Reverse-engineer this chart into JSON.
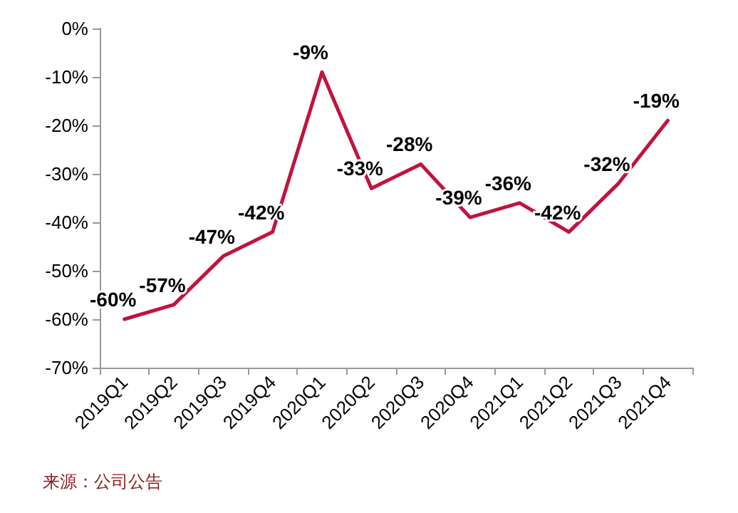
{
  "chart_data": {
    "type": "line",
    "categories": [
      "2019Q1",
      "2019Q2",
      "2019Q3",
      "2019Q4",
      "2020Q1",
      "2020Q2",
      "2020Q3",
      "2020Q4",
      "2021Q1",
      "2021Q2",
      "2021Q3",
      "2021Q4"
    ],
    "series": [
      {
        "color": "#c0143c",
        "values": [
          -60,
          -57,
          -47,
          -42,
          -9,
          -33,
          -28,
          -39,
          -36,
          -42,
          -32,
          -19
        ],
        "value_labels": [
          "-60%",
          "-57%",
          "-47%",
          "-42%",
          "-9%",
          "-33%",
          "-28%",
          "-39%",
          "-36%",
          "-42%",
          "-32%",
          "-19%"
        ]
      }
    ],
    "ylim": [
      -70,
      0
    ],
    "yticks": [
      {
        "value": 0,
        "label": "0%"
      },
      {
        "value": -10,
        "label": "-10%"
      },
      {
        "value": -20,
        "label": "-20%"
      },
      {
        "value": -30,
        "label": "-30%"
      },
      {
        "value": -40,
        "label": "-40%"
      },
      {
        "value": -50,
        "label": "-50%"
      },
      {
        "value": -60,
        "label": "-60%"
      },
      {
        "value": -70,
        "label": "-70%"
      }
    ],
    "grid": false,
    "marker": "none",
    "line_style": "solid",
    "annotations": [
      "来源：公司公告"
    ]
  }
}
